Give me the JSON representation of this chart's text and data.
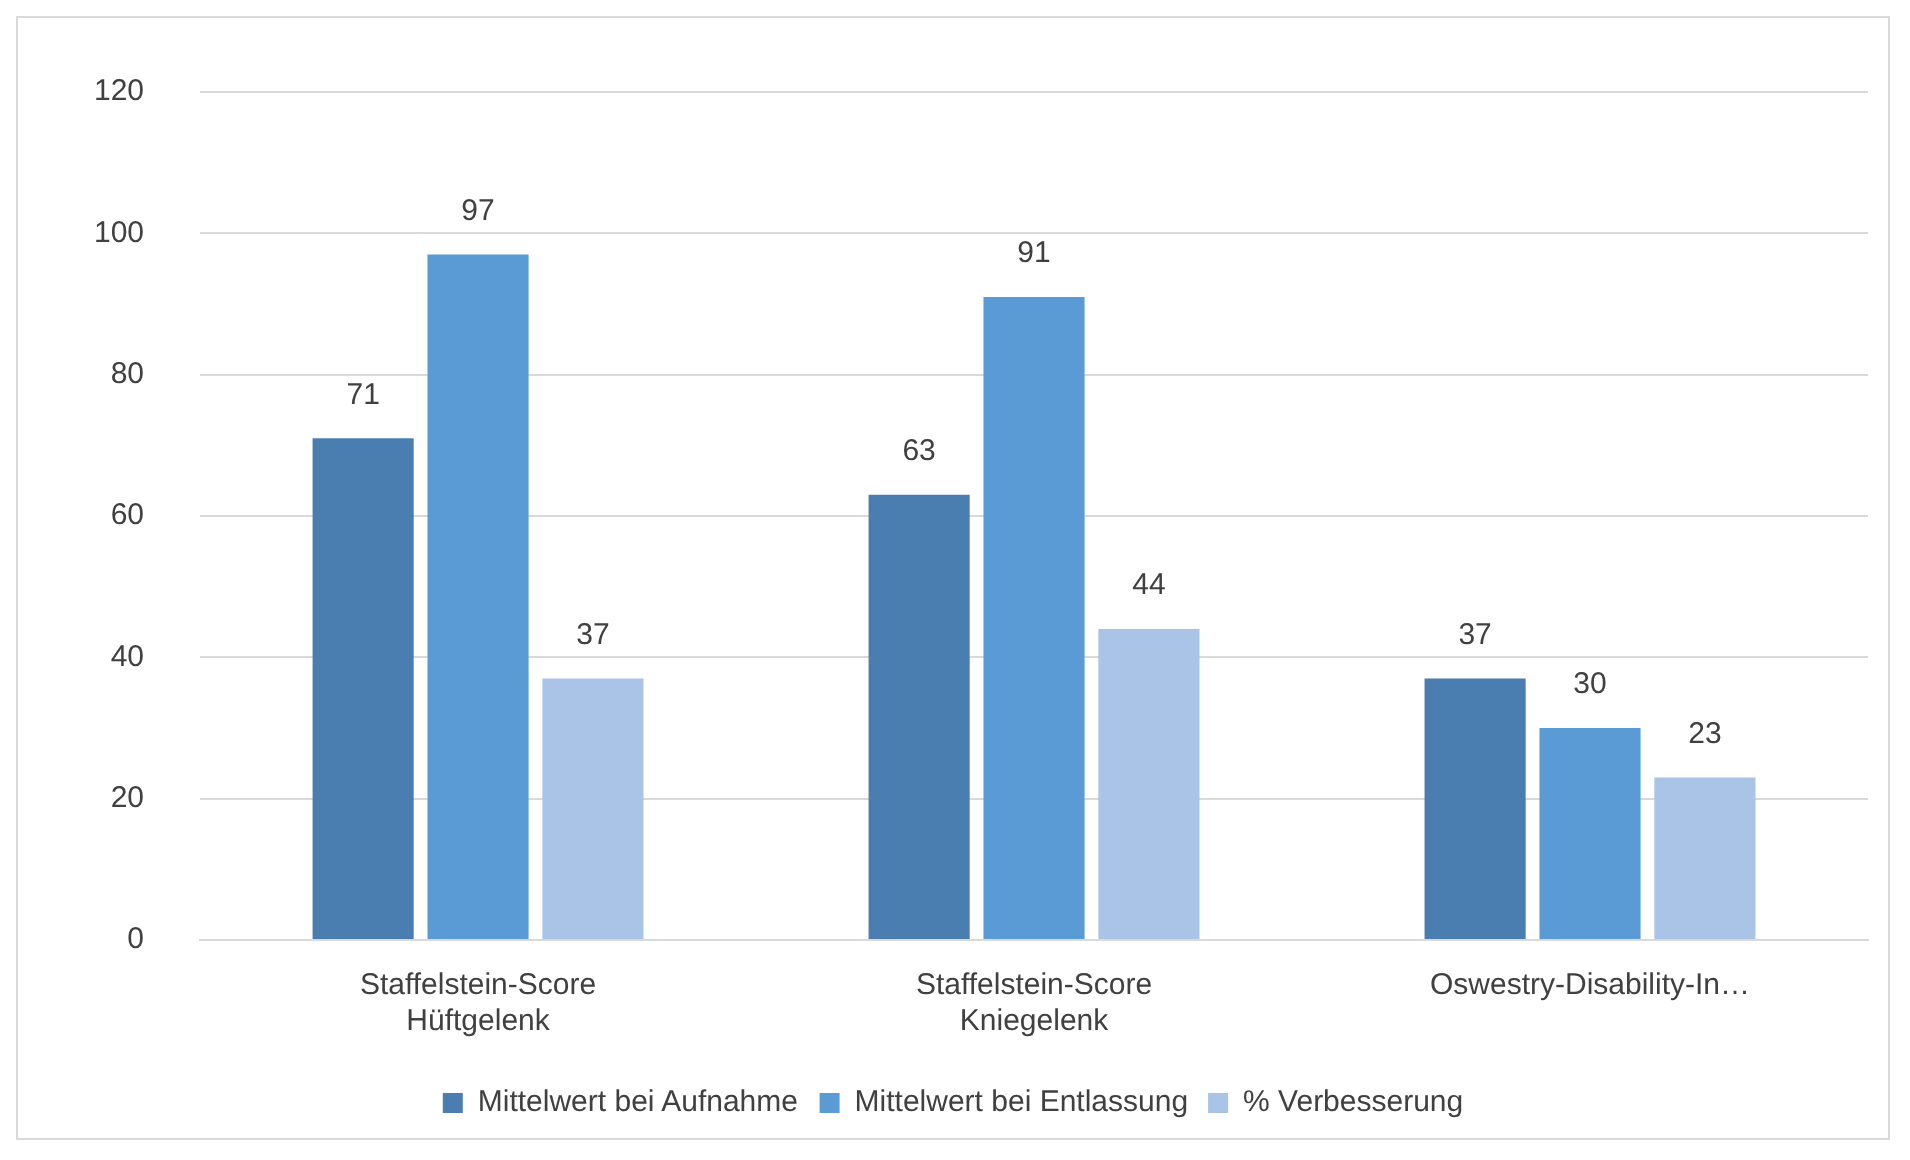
{
  "chart_data": {
    "type": "bar",
    "categories": [
      "Staffelstein-Score Hüftgelenk",
      "Staffelstein-Score Kniegelenk",
      "Oswestry-Disability-In…"
    ],
    "series": [
      {
        "name": "Mittelwert bei Aufnahme",
        "color": "#4a7eb0",
        "values": [
          71,
          63,
          37
        ]
      },
      {
        "name": "Mittelwert bei Entlassung",
        "color": "#5b9bd5",
        "values": [
          97,
          91,
          30
        ]
      },
      {
        "name": "% Verbesserung",
        "color": "#a9c4e6",
        "values": [
          37,
          44,
          23
        ]
      }
    ],
    "ylim": [
      0,
      120
    ],
    "yticks": [
      0,
      20,
      40,
      60,
      80,
      100,
      120
    ],
    "grid": "y",
    "legend": "bottom",
    "data_labels": true
  }
}
